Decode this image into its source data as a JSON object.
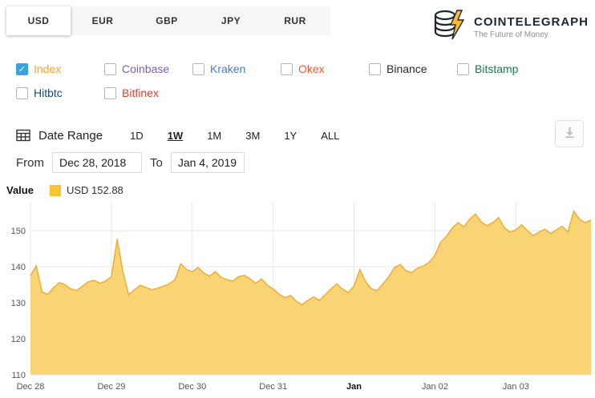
{
  "currency_tabs": {
    "items": [
      {
        "label": "USD",
        "active": true
      },
      {
        "label": "EUR",
        "active": false
      },
      {
        "label": "GBP",
        "active": false
      },
      {
        "label": "JPY",
        "active": false
      },
      {
        "label": "RUR",
        "active": false
      }
    ]
  },
  "logo": {
    "title": "COINTELEGRAPH",
    "tagline": "The Future of Money"
  },
  "exchanges": {
    "items": [
      {
        "label": "Index",
        "checked": true,
        "color": "#f5a623"
      },
      {
        "label": "Coinbase",
        "checked": false,
        "color": "#7b61b8"
      },
      {
        "label": "Kraken",
        "checked": false,
        "color": "#4a7fc1"
      },
      {
        "label": "Okex",
        "checked": false,
        "color": "#f0572e"
      },
      {
        "label": "Binance",
        "checked": false,
        "color": "#2b2b2b"
      },
      {
        "label": "Bitstamp",
        "checked": false,
        "color": "#1f7a4d"
      },
      {
        "label": "Hitbtc",
        "checked": false,
        "color": "#164a7c"
      },
      {
        "label": "Bitfinex",
        "checked": false,
        "color": "#e0402e"
      }
    ],
    "checked_color": "#38a3dd"
  },
  "date_range": {
    "label": "Date Range",
    "presets": [
      "1D",
      "1W",
      "1M",
      "3M",
      "1Y",
      "ALL"
    ],
    "active_preset": "1W",
    "from_label": "From",
    "from_value": "Dec 28, 2018",
    "to_label": "To",
    "to_value": "Jan 4, 2019"
  },
  "chart_data": {
    "type": "area",
    "title": "Value",
    "legend": {
      "label": "USD",
      "value": "152.88",
      "swatch_color": "#f7c433"
    },
    "fill_color": "#f9d475",
    "stroke_color": "#f0ac33",
    "grid_color": "#e7e7e7",
    "axis_label_color": "#555555",
    "ylim": [
      110,
      158
    ],
    "yticks": [
      110,
      120,
      130,
      140,
      150
    ],
    "xticks": [
      "Dec 28",
      "Dec 29",
      "Dec 30",
      "Dec 31",
      "Jan",
      "Jan 02",
      "Jan 03"
    ],
    "bold_xtick": "Jan",
    "points_per_day": 14,
    "series": [
      {
        "name": "USD",
        "values": [
          137.5,
          140.2,
          133.0,
          132.3,
          134.2,
          135.6,
          135.0,
          133.8,
          133.4,
          134.6,
          135.8,
          136.2,
          135.4,
          136.0,
          137.2,
          147.6,
          138.5,
          132.2,
          133.6,
          134.8,
          134.2,
          133.6,
          134.0,
          134.6,
          135.2,
          136.4,
          140.8,
          139.2,
          138.6,
          139.8,
          138.2,
          137.4,
          138.6,
          137.0,
          136.4,
          136.0,
          137.2,
          137.6,
          136.6,
          135.4,
          136.6,
          134.8,
          133.8,
          132.4,
          131.4,
          132.0,
          130.4,
          129.4,
          130.6,
          131.6,
          130.6,
          132.2,
          133.8,
          135.2,
          133.8,
          132.8,
          134.6,
          139.2,
          135.8,
          133.8,
          133.4,
          135.2,
          137.2,
          139.8,
          140.6,
          138.8,
          138.4,
          139.6,
          140.2,
          141.2,
          143.2,
          146.8,
          148.4,
          150.8,
          152.2,
          151.0,
          153.2,
          154.6,
          152.4,
          151.4,
          152.2,
          153.6,
          150.8,
          149.6,
          150.2,
          151.6,
          150.0,
          148.6,
          149.6,
          150.4,
          149.2,
          150.2,
          151.2,
          149.6,
          155.4,
          153.2,
          152.2,
          152.88
        ]
      }
    ]
  }
}
